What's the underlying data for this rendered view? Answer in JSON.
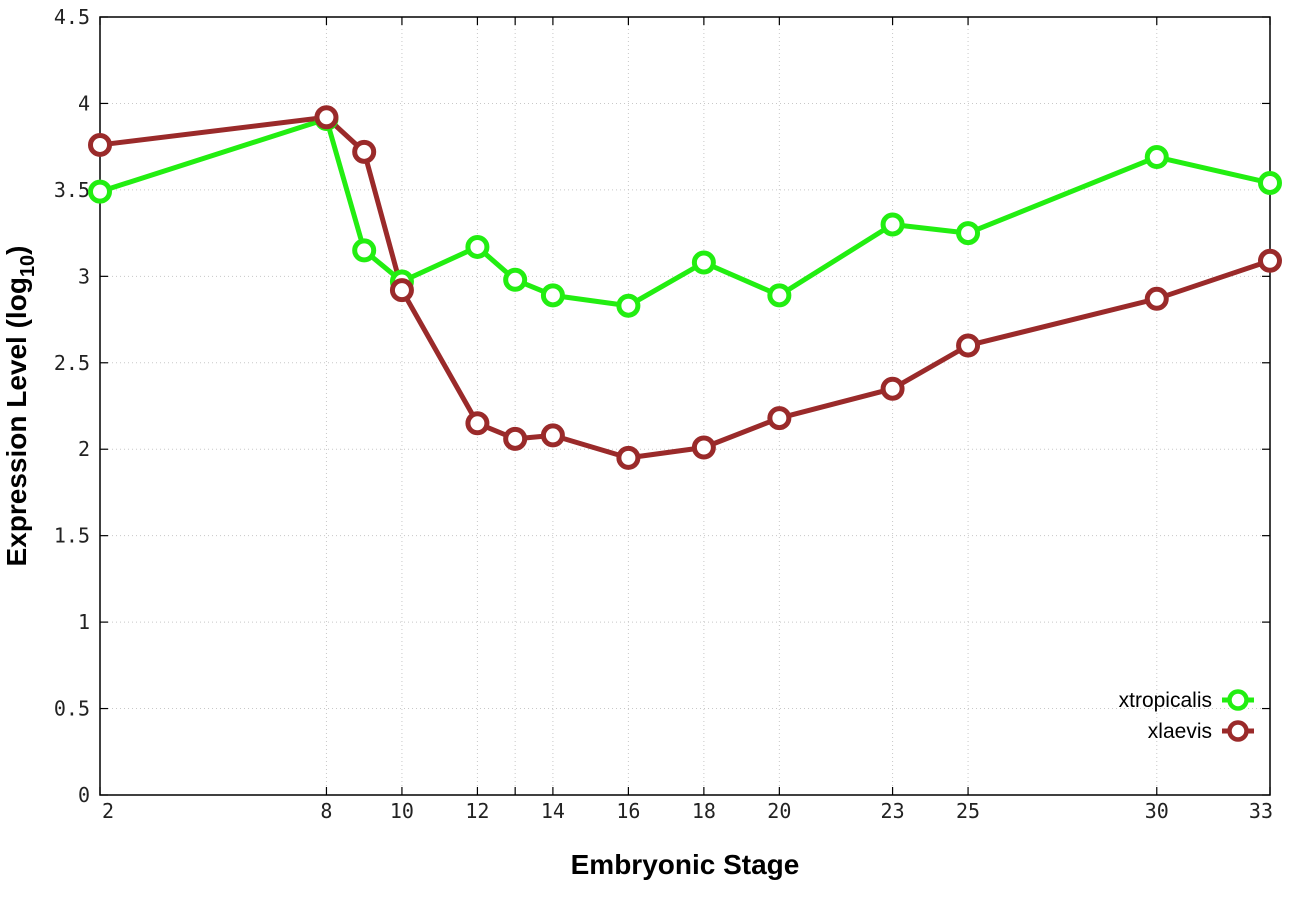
{
  "chart_data": {
    "type": "line",
    "xlabel": "Embryonic Stage",
    "ylabel_main": "Expression Level (log",
    "ylabel_sub": "10",
    "ylabel_close": ")",
    "x_ticks": [
      2,
      8,
      10,
      12,
      13,
      14,
      16,
      18,
      20,
      23,
      25,
      30,
      33
    ],
    "x_tick_labels": [
      "2",
      "8",
      "10",
      "12",
      "14",
      "16",
      "18",
      "20",
      "23",
      "25",
      "30",
      "33"
    ],
    "x_tick_label_values": [
      2,
      8,
      10,
      12,
      14,
      16,
      18,
      20,
      23,
      25,
      30,
      33
    ],
    "xlim": [
      2,
      33
    ],
    "y_ticks": [
      0,
      0.5,
      1,
      1.5,
      2,
      2.5,
      3,
      3.5,
      4,
      4.5
    ],
    "y_tick_labels": [
      "0",
      "0.5",
      "1",
      "1.5",
      "2",
      "2.5",
      "3",
      "3.5",
      "4",
      "4.5"
    ],
    "ylim": [
      0,
      4.5
    ],
    "grid": true,
    "legend_position": "bottom-right",
    "x": [
      2,
      8,
      9,
      10,
      12,
      13,
      14,
      16,
      18,
      20,
      23,
      25,
      30,
      33
    ],
    "series": [
      {
        "name": "xtropicalis",
        "color": "#22ee11",
        "values": [
          3.49,
          3.91,
          3.15,
          2.97,
          3.17,
          2.98,
          2.89,
          2.83,
          3.08,
          2.89,
          3.3,
          3.25,
          3.69,
          3.54
        ]
      },
      {
        "name": "xlaevis",
        "color": "#9a2a2a",
        "values": [
          3.76,
          3.92,
          3.72,
          2.92,
          2.15,
          2.06,
          2.08,
          1.95,
          2.01,
          2.18,
          2.35,
          2.6,
          2.87,
          3.09
        ]
      }
    ]
  }
}
